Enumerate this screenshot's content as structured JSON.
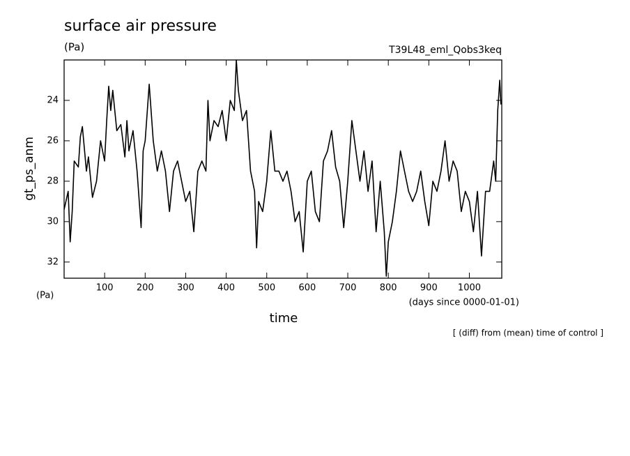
{
  "chart_data": {
    "type": "line",
    "title": "surface air pressure",
    "units": "(Pa)",
    "experiment": "T39L48_eml_Qobs3keq",
    "ylabel": "gt_ps_anm",
    "yunits": "(Pa)",
    "xlabel": "time",
    "xunits": "(days since 0000-01-01)",
    "note": "[ (diff) from (mean) time of control ]",
    "x": [
      0,
      10,
      15,
      20,
      25,
      35,
      40,
      45,
      55,
      60,
      70,
      80,
      90,
      100,
      105,
      110,
      115,
      120,
      130,
      140,
      150,
      155,
      160,
      170,
      180,
      190,
      195,
      200,
      210,
      220,
      230,
      240,
      250,
      260,
      270,
      280,
      290,
      300,
      310,
      320,
      330,
      340,
      350,
      355,
      360,
      370,
      380,
      390,
      400,
      410,
      420,
      425,
      430,
      440,
      450,
      460,
      470,
      475,
      480,
      490,
      500,
      510,
      520,
      530,
      540,
      550,
      560,
      570,
      580,
      590,
      600,
      610,
      620,
      630,
      640,
      650,
      660,
      670,
      680,
      690,
      700,
      710,
      720,
      730,
      740,
      750,
      760,
      770,
      780,
      790,
      795,
      800,
      810,
      820,
      830,
      840,
      850,
      860,
      870,
      880,
      890,
      900,
      910,
      920,
      930,
      940,
      950,
      960,
      970,
      980,
      990,
      1000,
      1010,
      1020,
      1030,
      1040,
      1050,
      1060,
      1065,
      1070,
      1075,
      1078
    ],
    "series": [
      {
        "name": "gt_ps_anm",
        "color": "#000000",
        "values": [
          29.4,
          28.5,
          31,
          29.5,
          27,
          27.3,
          25.8,
          25.3,
          27.5,
          26.8,
          28.8,
          28,
          26,
          27,
          25,
          23.3,
          24.5,
          23.5,
          25.5,
          25.2,
          26.8,
          25,
          26.5,
          25.5,
          27.5,
          30.3,
          26.5,
          26,
          23.2,
          26,
          27.5,
          26.5,
          27.5,
          29.5,
          27.5,
          27,
          28,
          29,
          28.5,
          30.5,
          27.5,
          27,
          27.5,
          24,
          26,
          25,
          25.3,
          24.5,
          26,
          24,
          24.5,
          22,
          23.5,
          25,
          24.5,
          27.5,
          28.5,
          31.3,
          29,
          29.5,
          28,
          25.5,
          27.5,
          27.5,
          28,
          27.5,
          28.5,
          30,
          29.5,
          31.5,
          28,
          27.5,
          29.5,
          30,
          27,
          26.5,
          25.5,
          27.3,
          28,
          30.3,
          28,
          25,
          26.5,
          28,
          26.5,
          28.5,
          27,
          30.5,
          28,
          30.5,
          32.7,
          31,
          30,
          28.5,
          26.5,
          27.5,
          28.5,
          29,
          28.5,
          27.5,
          29,
          30.2,
          28,
          28.5,
          27.5,
          26,
          28,
          27,
          27.5,
          29.5,
          28.5,
          29,
          30.5,
          28.5,
          31.7,
          28.5,
          28.5,
          27,
          28,
          24.5,
          23,
          24.2
        ]
      }
    ],
    "xlim": [
      0,
      1080
    ],
    "xticks": [
      100,
      200,
      300,
      400,
      500,
      600,
      700,
      800,
      900,
      1000
    ],
    "ylim": [
      22,
      32.8
    ],
    "y_reversed": true,
    "yticks": [
      24,
      26,
      28,
      30,
      32
    ]
  }
}
